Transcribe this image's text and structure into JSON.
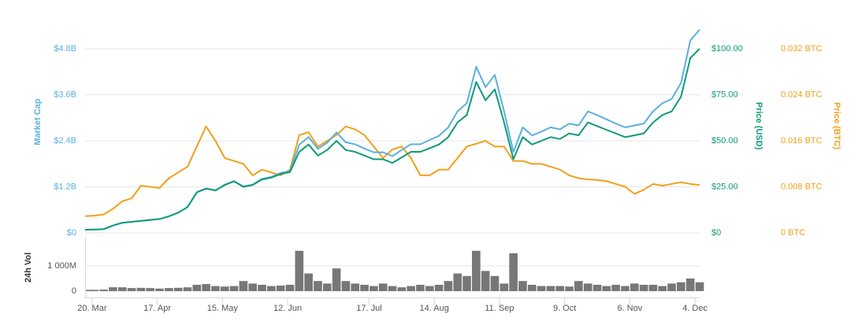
{
  "chart_data": [
    {
      "type": "line",
      "y_label": "Market Cap",
      "y2_label": "Price (USD)",
      "y3_label": "Price (BTC)",
      "x": [
        76,
        80,
        84,
        88,
        92,
        96,
        100,
        104,
        108,
        112,
        116,
        120,
        124,
        128,
        132,
        136,
        140,
        144,
        148,
        152,
        156,
        160,
        164,
        168,
        172,
        176,
        180,
        184,
        188,
        192,
        196,
        200,
        204,
        208,
        212,
        216,
        220,
        224,
        228,
        232,
        236,
        240,
        244,
        248,
        252,
        256,
        260,
        264,
        268,
        272,
        276,
        280,
        284,
        288,
        292,
        296,
        300,
        304,
        308,
        312,
        316,
        320,
        324,
        328,
        332,
        336,
        340
      ],
      "xlim": [
        76,
        340
      ],
      "xticks": [
        {
          "value": 79,
          "label": "20. Mar"
        },
        {
          "value": 107,
          "label": "17. Apr"
        },
        {
          "value": 135,
          "label": "15. May"
        },
        {
          "value": 163,
          "label": "12. Jun"
        },
        {
          "value": 198,
          "label": "17. Jul"
        },
        {
          "value": 226,
          "label": "14. Aug"
        },
        {
          "value": 254,
          "label": "11. Sep"
        },
        {
          "value": 282,
          "label": "9. Oct"
        },
        {
          "value": 310,
          "label": "6. Nov"
        },
        {
          "value": 338,
          "label": "4. Dec"
        }
      ],
      "ylim": [
        0,
        6000000000.0
      ],
      "yticks": [
        {
          "value": 0,
          "label": "$0"
        },
        {
          "value": 1200000000.0,
          "label": "$1.2B"
        },
        {
          "value": 2400000000.0,
          "label": "$2.4B"
        },
        {
          "value": 3600000000.0,
          "label": "$3.6B"
        },
        {
          "value": 4800000000.0,
          "label": "$4.8B"
        }
      ],
      "y2lim": [
        0,
        125
      ],
      "y2ticks": [
        {
          "value": 0,
          "label": "$0"
        },
        {
          "value": 25,
          "label": "$25.00"
        },
        {
          "value": 50,
          "label": "$50.00"
        },
        {
          "value": 75,
          "label": "$75.00"
        },
        {
          "value": 100,
          "label": "$100.00"
        }
      ],
      "y3lim": [
        0,
        0.04
      ],
      "y3ticks": [
        {
          "value": 0,
          "label": "0 BTC"
        },
        {
          "value": 0.008,
          "label": "0.008 BTC"
        },
        {
          "value": 0.016,
          "label": "0.016 BTC"
        },
        {
          "value": 0.024,
          "label": "0.024 BTC"
        },
        {
          "value": 0.032,
          "label": "0.032 BTC"
        }
      ],
      "grid": true,
      "series": [
        {
          "name": "Market Cap",
          "color": "#5ab0de",
          "axis": "y",
          "values": [
            82000000.0,
            87000000.0,
            96000000.0,
            190000000.0,
            260000000.0,
            290000000.0,
            310000000.0,
            340000000.0,
            360000000.0,
            430000000.0,
            530000000.0,
            670000000.0,
            1060000000.0,
            1160000000.0,
            1110000000.0,
            1260000000.0,
            1350000000.0,
            1210000000.0,
            1260000000.0,
            1410000000.0,
            1460000000.0,
            1560000000.0,
            1610000000.0,
            2300000000.0,
            2500000000.0,
            2190000000.0,
            2350000000.0,
            2620000000.0,
            2360000000.0,
            2310000000.0,
            2200000000.0,
            2100000000.0,
            2100000000.0,
            2000000000.0,
            2160000000.0,
            2310000000.0,
            2310000000.0,
            2420000000.0,
            2530000000.0,
            2750000000.0,
            3170000000.0,
            3380000000.0,
            4330000000.0,
            3800000000.0,
            4120000000.0,
            3170000000.0,
            2110000000.0,
            2750000000.0,
            2540000000.0,
            2640000000.0,
            2750000000.0,
            2700000000.0,
            2850000000.0,
            2800000000.0,
            3170000000.0,
            3070000000.0,
            2960000000.0,
            2850000000.0,
            2750000000.0,
            2800000000.0,
            2850000000.0,
            3170000000.0,
            3380000000.0,
            3490000000.0,
            3910000000.0,
            5020000000.0,
            5300000000.0
          ]
        },
        {
          "name": "Price (USD)",
          "color": "#0f9a77",
          "axis": "y2",
          "values": [
            1.7,
            1.8,
            2.0,
            4,
            5.5,
            6,
            6.5,
            7,
            7.5,
            9,
            11,
            14,
            22,
            24,
            23,
            26,
            28,
            25,
            26,
            29,
            30,
            32,
            33,
            44,
            48,
            42,
            45,
            50,
            45,
            44,
            42,
            40,
            40,
            38,
            41,
            44,
            44,
            46,
            48,
            52,
            60,
            64,
            82,
            72,
            78,
            60,
            40,
            52,
            48,
            50,
            52,
            51,
            54,
            53,
            60,
            58,
            56,
            54,
            52,
            53,
            54,
            60,
            64,
            66,
            74,
            95,
            100
          ]
        },
        {
          "name": "Price (BTC)",
          "color": "#f2a01b",
          "axis": "y3",
          "values": [
            0.0029,
            0.003,
            0.0032,
            0.0042,
            0.0055,
            0.006,
            0.0082,
            0.008,
            0.0078,
            0.0095,
            0.0105,
            0.0115,
            0.015,
            0.0185,
            0.016,
            0.013,
            0.0125,
            0.012,
            0.01,
            0.011,
            0.0105,
            0.01,
            0.011,
            0.017,
            0.0175,
            0.015,
            0.016,
            0.017,
            0.0185,
            0.018,
            0.017,
            0.015,
            0.013,
            0.0145,
            0.015,
            0.013,
            0.01,
            0.01,
            0.011,
            0.011,
            0.013,
            0.015,
            0.0155,
            0.016,
            0.015,
            0.015,
            0.0125,
            0.0125,
            0.012,
            0.012,
            0.0115,
            0.011,
            0.01,
            0.0095,
            0.0093,
            0.0092,
            0.009,
            0.0085,
            0.008,
            0.0068,
            0.0075,
            0.0085,
            0.0082,
            0.0085,
            0.0088,
            0.0085,
            0.0083
          ]
        }
      ]
    },
    {
      "type": "bar",
      "y_label": "24h Vol",
      "ylim": [
        0,
        2000000000.0
      ],
      "yticks": [
        0,
        {
          "value": 1000000000.0,
          "label": "1 000M"
        }
      ],
      "color": "#777777",
      "values": [
        50000000.0,
        50000000.0,
        60000000.0,
        150000000.0,
        150000000.0,
        120000000.0,
        130000000.0,
        120000000.0,
        100000000.0,
        120000000.0,
        130000000.0,
        150000000.0,
        250000000.0,
        280000000.0,
        200000000.0,
        180000000.0,
        200000000.0,
        400000000.0,
        300000000.0,
        250000000.0,
        200000000.0,
        220000000.0,
        250000000.0,
        1600000000.0,
        700000000.0,
        400000000.0,
        300000000.0,
        900000000.0,
        400000000.0,
        300000000.0,
        250000000.0,
        200000000.0,
        300000000.0,
        200000000.0,
        150000000.0,
        200000000.0,
        250000000.0,
        200000000.0,
        250000000.0,
        400000000.0,
        700000000.0,
        600000000.0,
        1600000000.0,
        800000000.0,
        600000000.0,
        300000000.0,
        1500000000.0,
        400000000.0,
        250000000.0,
        200000000.0,
        200000000.0,
        200000000.0,
        180000000.0,
        400000000.0,
        300000000.0,
        250000000.0,
        200000000.0,
        250000000.0,
        200000000.0,
        300000000.0,
        250000000.0,
        250000000.0,
        200000000.0,
        300000000.0,
        350000000.0,
        500000000.0,
        350000000.0
      ]
    }
  ]
}
